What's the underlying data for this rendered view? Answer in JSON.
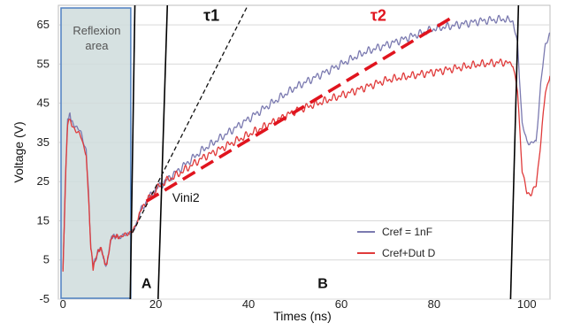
{
  "chart_data": {
    "type": "line",
    "title": "",
    "xlabel": "Times (ns)",
    "ylabel": "Voltage (V)",
    "xlim": [
      -1,
      105
    ],
    "ylim": [
      -5,
      70
    ],
    "x_ticks": [
      0,
      20,
      40,
      60,
      80,
      100
    ],
    "y_ticks": [
      -5,
      5,
      15,
      25,
      35,
      45,
      55,
      65
    ],
    "grid": "horizontal",
    "legend": {
      "placement": "bottom-right",
      "entries": [
        {
          "label": "Cref = 1nF",
          "color": "#7b7ab0"
        },
        {
          "label": "Cref+Dut D",
          "color": "#e03b3b"
        }
      ]
    },
    "series": [
      {
        "name": "Cref = 1nF",
        "color": "#7b7ab0",
        "x": [
          0,
          0.5,
          1,
          1.5,
          2,
          3,
          4,
          5,
          5.5,
          6,
          6.5,
          7,
          7.5,
          8,
          8.5,
          9,
          9.5,
          10,
          10.5,
          11,
          11.5,
          12,
          13,
          14,
          15,
          16,
          17,
          18,
          20,
          22,
          25,
          30,
          35,
          40,
          45,
          50,
          55,
          60,
          65,
          70,
          75,
          80,
          85,
          90,
          95,
          97,
          98,
          99,
          100,
          101,
          102,
          103,
          104,
          105
        ],
        "y": [
          2,
          25,
          41,
          42,
          40,
          39,
          37,
          33,
          22,
          8,
          4,
          5,
          7,
          8,
          7,
          4,
          4,
          8,
          11,
          11,
          11,
          11,
          11,
          12,
          12,
          15,
          18,
          20,
          23,
          25,
          28,
          33,
          37,
          41,
          45,
          49,
          52,
          55,
          58,
          60,
          62,
          64,
          65,
          66,
          66.5,
          66,
          60,
          40,
          35,
          35,
          35,
          50,
          60,
          63
        ]
      },
      {
        "name": "Cref+Dut D",
        "color": "#e03b3b",
        "x": [
          0,
          0.5,
          1,
          1.5,
          2,
          3,
          4,
          5,
          5.5,
          6,
          6.5,
          7,
          7.5,
          8,
          8.5,
          9,
          9.5,
          10,
          10.5,
          11,
          11.5,
          12,
          13,
          14,
          15,
          16,
          17,
          18,
          20,
          22,
          25,
          30,
          35,
          40,
          45,
          50,
          55,
          60,
          65,
          70,
          75,
          80,
          85,
          90,
          95,
          97,
          98,
          99,
          100,
          101,
          102,
          103,
          104,
          105
        ],
        "y": [
          2,
          24,
          40,
          41,
          39,
          38,
          36,
          32,
          21,
          8,
          3,
          5,
          7,
          8,
          7,
          4,
          4,
          8,
          11,
          11,
          11,
          11,
          11,
          12,
          12,
          15,
          18,
          20,
          23,
          25,
          27,
          31,
          34,
          37,
          40,
          43,
          45,
          47,
          49,
          51,
          52,
          53,
          54,
          55,
          55.5,
          55,
          48,
          28,
          22,
          22,
          24,
          35,
          48,
          52
        ]
      }
    ],
    "reference_lines": [
      {
        "label": "τ1",
        "style": "dashed",
        "color": "#111111",
        "x": [
          15,
          45
        ],
        "y": [
          12,
          82
        ]
      },
      {
        "label": "τ2",
        "style": "dashed",
        "color": "#e0141e",
        "x": [
          18,
          84
        ],
        "y": [
          20,
          67
        ]
      }
    ],
    "vertical_markers": [
      {
        "x": [
          14.5,
          15.5
        ],
        "y": [
          -5,
          70
        ]
      },
      {
        "x": [
          20.5,
          22.5
        ],
        "y": [
          -5,
          70
        ]
      },
      {
        "x": [
          96.5,
          98.2
        ],
        "y": [
          -5,
          70
        ]
      }
    ],
    "shaded_region": {
      "label": "Reflexion\narea",
      "x": [
        -1,
        14.8
      ],
      "y": [
        -5,
        70
      ]
    },
    "annotations": [
      {
        "text": "τ1",
        "x": 32,
        "y": 66
      },
      {
        "text": "τ2",
        "x": 68,
        "y": 66
      },
      {
        "text": "Vini2",
        "x": 26.5,
        "y": 21
      },
      {
        "text": "A",
        "x": 18,
        "y": -1
      },
      {
        "text": "B",
        "x": 56,
        "y": -1
      }
    ]
  }
}
